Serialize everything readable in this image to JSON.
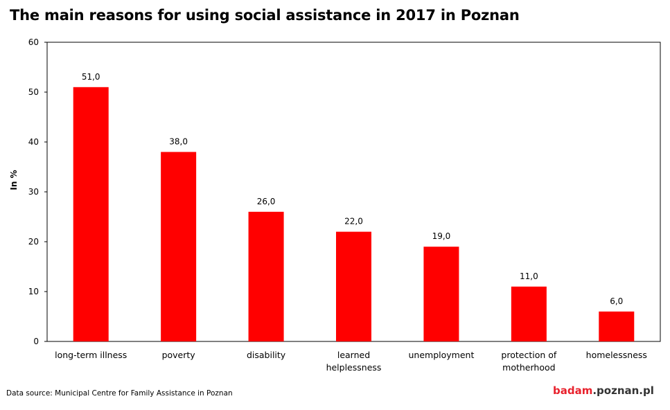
{
  "title": "The main reasons for using social assistance in 2017 in Poznan",
  "source": "Data source: Municipal Centre for Family Assistance in Poznan",
  "logo": {
    "part1": "badam",
    "part2": ".poznan.pl"
  },
  "colors": {
    "bar": "#ff0000",
    "logo_accent": "#e8212c"
  },
  "chart_data": {
    "type": "bar",
    "ylabel": "In %",
    "ylim": [
      0,
      60
    ],
    "yticks": [
      0,
      10,
      20,
      30,
      40,
      50,
      60
    ],
    "categories": [
      [
        "long-term illness"
      ],
      [
        "poverty"
      ],
      [
        "disability"
      ],
      [
        "learned",
        "helplessness"
      ],
      [
        "unemployment"
      ],
      [
        "protection of",
        "motherhood"
      ],
      [
        "homelessness"
      ]
    ],
    "values": [
      51.0,
      38.0,
      26.0,
      22.0,
      19.0,
      11.0,
      6.0
    ],
    "value_labels": [
      "51,0",
      "38,0",
      "26,0",
      "22,0",
      "19,0",
      "11,0",
      "6,0"
    ],
    "grid": false,
    "legend": "none"
  }
}
